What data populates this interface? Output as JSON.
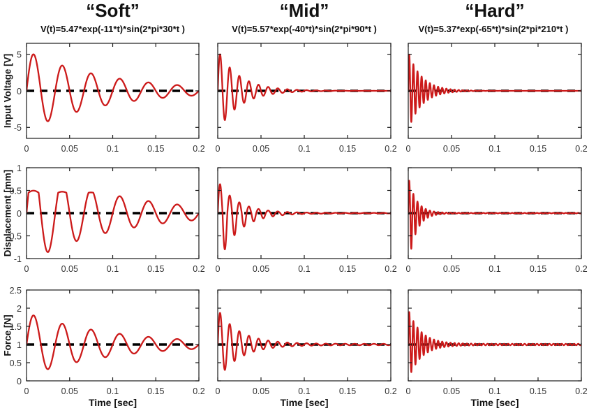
{
  "chart_data": {
    "type": "line",
    "title": "",
    "style": {
      "curve_color": "#cc1a1a",
      "baseline_color": "#000000",
      "axis_color": "#1a1a1a",
      "tick_label_color": "#333333",
      "background": "#ffffff"
    },
    "x": {
      "label": "Time [sec]",
      "lim": [
        0,
        0.2
      ],
      "ticks": [
        0,
        0.05,
        0.1,
        0.15,
        0.2
      ],
      "ticklabels": [
        "0",
        "0.05",
        "0.1",
        "0.15",
        "0.2"
      ]
    },
    "columns": [
      {
        "id": "soft",
        "title": "“Soft”",
        "formula": "V(t)=5.47*exp(-11*t)*sin(2*pi*30*t )",
        "freq_hz": 30
      },
      {
        "id": "mid",
        "title": "“Mid”",
        "formula": "V(t)=5.57*exp(-40*t)*sin(2*pi*90*t )",
        "freq_hz": 90
      },
      {
        "id": "hard",
        "title": "“Hard”",
        "formula": "V(t)=5.37*exp(-65*t)*sin(2*pi*210*t )",
        "freq_hz": 210
      }
    ],
    "rows": [
      {
        "ylabel": "Input Voltage [V]",
        "ylim": [
          -6.5,
          6.5
        ],
        "yticks": [
          -5,
          0,
          5
        ],
        "yticklabels": [
          "-5",
          "0",
          "5"
        ],
        "baseline": 0
      },
      {
        "ylabel": "Displacement [mm]",
        "ylim": [
          -1,
          1
        ],
        "yticks": [
          -1,
          -0.5,
          0,
          0.5,
          1
        ],
        "yticklabels": [
          "-1",
          "-0.5",
          "0",
          "0.5",
          "1"
        ],
        "baseline": 0
      },
      {
        "ylabel": "Force [N]",
        "ylim": [
          0,
          2.5
        ],
        "yticks": [
          0,
          0.5,
          1,
          1.5,
          2,
          2.5
        ],
        "yticklabels": [
          "0",
          "0.5",
          "1",
          "1.5",
          "2",
          "2.5"
        ],
        "baseline": 1
      }
    ],
    "series": [
      [
        {
          "signal": "damped_sine",
          "amp": 5.47,
          "decay": 11,
          "freq": 30,
          "residual": 0
        },
        {
          "signal": "damped_sine",
          "amp": 5.57,
          "decay": 40,
          "freq": 90,
          "residual": 0
        },
        {
          "signal": "damped_sine",
          "amp": 5.37,
          "decay": 65,
          "freq": 210,
          "residual": 0
        }
      ],
      [
        {
          "signal": "damped_sine",
          "amp": 1.1,
          "decay": 10,
          "freq": 30,
          "clip_pos": 0.45,
          "residual": 0
        },
        {
          "signal": "damped_sine",
          "amp": 1.15,
          "decay": 45,
          "freq": 90,
          "pos_scale": 0.62,
          "residual": 0.006
        },
        {
          "signal": "damped_sine",
          "amp": 1.15,
          "decay": 110,
          "freq": 210,
          "pos_scale": 0.7,
          "residual": 0.006
        }
      ],
      [
        {
          "signal": "damped_sine",
          "amp": 0.87,
          "decay": 10,
          "freq": 30,
          "residual": 0
        },
        {
          "signal": "damped_sine",
          "amp": 0.95,
          "decay": 40,
          "freq": 90,
          "residual": 0.018
        },
        {
          "signal": "damped_sine",
          "amp": 0.95,
          "decay": 70,
          "freq": 210,
          "residual": 0.02
        }
      ]
    ]
  }
}
